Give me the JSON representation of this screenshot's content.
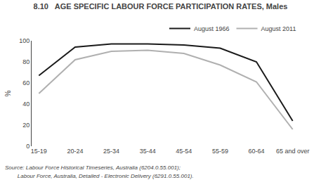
{
  "chart_data": {
    "type": "line",
    "title": "8.10   AGE SPECIFIC LABOUR FORCE PARTICIPATION RATES, Males",
    "categories": [
      "15-19",
      "20-24",
      "25-34",
      "35-44",
      "45-54",
      "55-59",
      "60-64",
      "65 and over"
    ],
    "series": [
      {
        "name": "August 1966",
        "color": "#1a1a1a",
        "values": [
          67,
          94,
          97,
          97,
          96,
          93,
          80,
          24
        ]
      },
      {
        "name": "August 2011",
        "color": "#b0b0b0",
        "values": [
          50,
          82,
          90,
          91,
          88,
          77,
          61,
          16
        ]
      }
    ],
    "ylabel": "%",
    "ylim": [
      0,
      100
    ],
    "yticks": [
      0,
      20,
      40,
      60,
      80,
      100
    ],
    "grid": false,
    "legend": "upper right",
    "annotations": [
      "Source: Labour Force Historical Timeseries, Australia (6204.0.55.001);",
      "        Labour Force, Australia, Detailed - Electronic Delivery (6291.0.55.001)."
    ]
  }
}
